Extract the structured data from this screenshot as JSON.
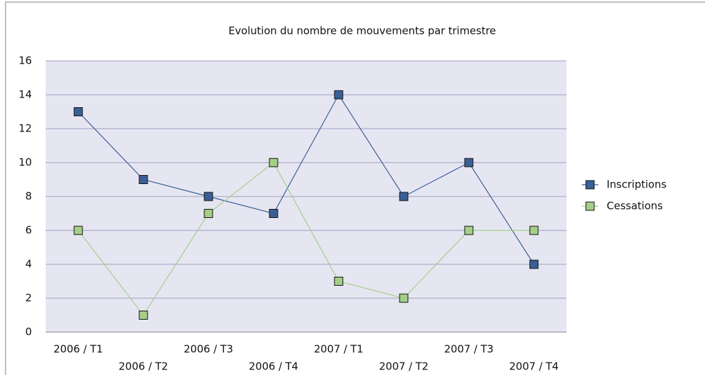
{
  "chart_data": {
    "type": "line",
    "title": "Evolution du nombre de mouvements par trimestre",
    "categories": [
      "2006 / T1",
      "2006 / T2",
      "2006 / T3",
      "2006 / T4",
      "2007 / T1",
      "2007 / T2",
      "2007 / T3",
      "2007 / T4"
    ],
    "series": [
      {
        "name": "Inscriptions",
        "color": "#3a5f96",
        "values": [
          13,
          9,
          8,
          7,
          14,
          8,
          10,
          4
        ]
      },
      {
        "name": "Cessations",
        "color": "#a4cf86",
        "values": [
          6,
          1,
          7,
          10,
          3,
          2,
          6,
          6
        ]
      }
    ],
    "ylim": [
      0,
      16
    ],
    "yticks": [
      0,
      2,
      4,
      6,
      8,
      10,
      12,
      14,
      16
    ],
    "grid": true,
    "legend": "right"
  }
}
